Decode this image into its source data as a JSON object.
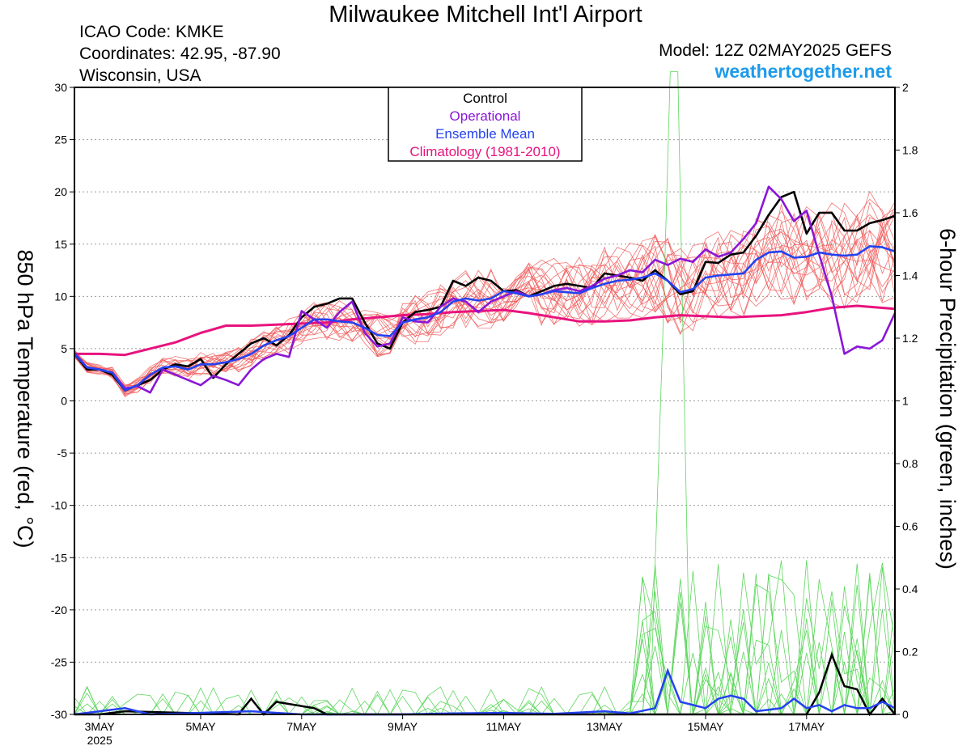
{
  "header": {
    "title": "Milwaukee Mitchell Int'l Airport",
    "icao": "ICAO Code: KMKE",
    "coords": "Coordinates: 42.95, -87.90",
    "region": "Wisconsin, USA",
    "model": "Model: 12Z 02MAY2025 GEFS",
    "site": "weathertogether.net"
  },
  "colors": {
    "control": "#000000",
    "operational": "#8a16d8",
    "mean": "#2442f0",
    "climatology": "#e8137e",
    "members_temp": "#f05a5a",
    "members_precip": "#5dd65d",
    "site": "#1e9bea"
  },
  "chart_data": {
    "type": "line",
    "ylabel": "850 hPa Temperature (red, °C)",
    "y2label": "6-hour Precipitation (green, inches)",
    "ylim": [
      -30,
      30
    ],
    "y2lim": [
      0,
      2
    ],
    "xlim": [
      2.5,
      18.75
    ],
    "yticks": [
      30,
      25,
      20,
      15,
      10,
      5,
      0,
      -5,
      -10,
      -15,
      -20,
      -25,
      -30
    ],
    "y2ticks": [
      "2",
      "1.8",
      "1.6",
      "1.4",
      "1.2",
      "1",
      "0.8",
      "0.6",
      "0.4",
      "0.2",
      "0"
    ],
    "xticks": [
      {
        "x": 3,
        "label": "3MAY",
        "sub": "2025"
      },
      {
        "x": 5,
        "label": "5MAY"
      },
      {
        "x": 7,
        "label": "7MAY"
      },
      {
        "x": 9,
        "label": "9MAY"
      },
      {
        "x": 11,
        "label": "11MAY"
      },
      {
        "x": 13,
        "label": "13MAY"
      },
      {
        "x": 15,
        "label": "15MAY"
      },
      {
        "x": 17,
        "label": "17MAY"
      }
    ],
    "grid": true,
    "legend": {
      "position": "top-center",
      "entries": [
        {
          "label": "Control",
          "color": "#000000"
        },
        {
          "label": "Operational",
          "color": "#8a16d8"
        },
        {
          "label": "Ensemble Mean",
          "color": "#2442f0"
        },
        {
          "label": "Climatology (1981-2010)",
          "color": "#e8137e"
        }
      ]
    },
    "series": [
      {
        "name": "Climatology (1981-2010)",
        "role": "climatology",
        "x": [
          2.5,
          3.0,
          3.5,
          4.0,
          4.5,
          5.0,
          5.5,
          6.0,
          6.5,
          7.0,
          7.5,
          8.0,
          8.5,
          9.0,
          9.5,
          10.0,
          10.5,
          11.0,
          11.5,
          12.0,
          12.5,
          13.0,
          13.5,
          14.0,
          14.5,
          15.0,
          15.5,
          16.0,
          16.5,
          17.0,
          17.5,
          18.0,
          18.75
        ],
        "y": [
          4.5,
          4.5,
          4.4,
          5.0,
          5.6,
          6.5,
          7.2,
          7.2,
          7.3,
          7.4,
          7.5,
          7.8,
          8.0,
          8.2,
          8.3,
          8.5,
          8.6,
          8.7,
          8.4,
          8.0,
          7.6,
          7.6,
          7.7,
          8.0,
          8.2,
          8.1,
          8.0,
          8.1,
          8.2,
          8.5,
          8.9,
          9.1,
          8.8
        ]
      },
      {
        "name": "Control",
        "role": "control",
        "x": [
          2.5,
          2.75,
          3.0,
          3.25,
          3.5,
          3.75,
          4.0,
          4.25,
          4.5,
          4.75,
          5.0,
          5.25,
          5.5,
          5.75,
          6.0,
          6.25,
          6.5,
          6.75,
          7.0,
          7.25,
          7.5,
          7.75,
          8.0,
          8.25,
          8.5,
          8.75,
          9.0,
          9.25,
          9.5,
          9.75,
          10.0,
          10.25,
          10.5,
          10.75,
          11.0,
          11.25,
          11.5,
          11.75,
          12.0,
          12.25,
          12.5,
          12.75,
          13.0,
          13.25,
          13.5,
          13.75,
          14.0,
          14.25,
          14.5,
          14.75,
          15.0,
          15.25,
          15.5,
          15.75,
          16.0,
          16.25,
          16.5,
          16.75,
          17.0,
          17.25,
          17.5,
          17.75,
          18.0,
          18.25,
          18.5,
          18.75
        ],
        "y": [
          4.5,
          3.0,
          3.0,
          2.5,
          1.0,
          1.5,
          2.0,
          3.0,
          3.5,
          3.3,
          4.0,
          2.2,
          3.5,
          4.5,
          5.5,
          6.0,
          5.3,
          6.3,
          8.0,
          9.0,
          9.3,
          9.8,
          9.8,
          7.5,
          5.5,
          5.0,
          7.5,
          8.5,
          8.7,
          9.0,
          11.5,
          11.0,
          11.8,
          11.5,
          10.5,
          10.6,
          10.0,
          10.5,
          11.0,
          11.2,
          11.0,
          10.8,
          12.2,
          12.0,
          11.8,
          11.5,
          12.5,
          11.5,
          10.2,
          10.5,
          13.3,
          13.2,
          14.0,
          14.2,
          15.8,
          17.8,
          19.5,
          20.0,
          16.0,
          18.0,
          18.0,
          16.3,
          16.3,
          17.0,
          17.3,
          17.7
        ]
      },
      {
        "name": "Operational",
        "role": "operational",
        "x": [
          2.5,
          2.75,
          3.0,
          3.25,
          3.5,
          3.75,
          4.0,
          4.25,
          4.5,
          4.75,
          5.0,
          5.25,
          5.5,
          5.75,
          6.0,
          6.25,
          6.5,
          6.75,
          7.0,
          7.25,
          7.5,
          7.75,
          8.0,
          8.25,
          8.5,
          8.75,
          9.0,
          9.25,
          9.5,
          9.75,
          10.0,
          10.25,
          10.5,
          10.75,
          11.0,
          11.25,
          11.5,
          11.75,
          12.0,
          12.25,
          12.5,
          12.75,
          13.0,
          13.25,
          13.5,
          13.75,
          14.0,
          14.25,
          14.5,
          14.75,
          15.0,
          15.25,
          15.5,
          15.75,
          16.0,
          16.25,
          16.5,
          16.75,
          17.0,
          17.25,
          17.5,
          17.75,
          18.0,
          18.25,
          18.5,
          18.75
        ],
        "y": [
          4.6,
          3.2,
          3.0,
          2.7,
          1.2,
          1.4,
          0.8,
          3.0,
          2.5,
          2.0,
          1.5,
          2.4,
          2.0,
          1.5,
          3.0,
          4.0,
          4.5,
          4.2,
          8.6,
          7.8,
          7.0,
          8.5,
          9.5,
          6.5,
          5.2,
          5.5,
          8.0,
          7.6,
          7.5,
          9.0,
          9.8,
          9.5,
          8.5,
          9.5,
          10.0,
          10.5,
          10.0,
          10.2,
          10.6,
          10.8,
          10.5,
          11.0,
          11.7,
          12.0,
          12.5,
          12.3,
          13.5,
          13.0,
          13.6,
          13.3,
          14.5,
          13.8,
          14.2,
          15.5,
          17.0,
          20.5,
          19.3,
          17.2,
          18.2,
          14.0,
          10.0,
          4.5,
          5.2,
          5.0,
          5.8,
          8.4
        ]
      },
      {
        "name": "Ensemble Mean",
        "role": "mean",
        "x": [
          2.5,
          2.75,
          3.0,
          3.25,
          3.5,
          3.75,
          4.0,
          4.25,
          4.5,
          4.75,
          5.0,
          5.25,
          5.5,
          5.75,
          6.0,
          6.25,
          6.5,
          6.75,
          7.0,
          7.25,
          7.5,
          7.75,
          8.0,
          8.25,
          8.5,
          8.75,
          9.0,
          9.25,
          9.5,
          9.75,
          10.0,
          10.25,
          10.5,
          10.75,
          11.0,
          11.25,
          11.5,
          11.75,
          12.0,
          12.25,
          12.5,
          12.75,
          13.0,
          13.25,
          13.5,
          13.75,
          14.0,
          14.25,
          14.5,
          14.75,
          15.0,
          15.25,
          15.5,
          15.75,
          16.0,
          16.25,
          16.5,
          16.75,
          17.0,
          17.25,
          17.5,
          17.75,
          18.0,
          18.25,
          18.5,
          18.75
        ],
        "y": [
          4.5,
          3.2,
          3.0,
          2.7,
          1.0,
          1.5,
          2.5,
          3.2,
          3.3,
          3.0,
          3.5,
          3.5,
          3.7,
          4.0,
          4.5,
          5.3,
          5.8,
          6.2,
          7.0,
          7.8,
          7.8,
          7.6,
          7.5,
          7.0,
          6.3,
          6.2,
          7.5,
          7.8,
          8.0,
          8.5,
          9.5,
          9.8,
          9.6,
          9.8,
          10.5,
          10.3,
          10.0,
          10.2,
          10.5,
          10.4,
          10.3,
          10.8,
          11.2,
          11.5,
          11.6,
          11.8,
          12.2,
          11.5,
          10.4,
          10.7,
          11.8,
          12.0,
          12.1,
          12.2,
          13.5,
          14.2,
          14.3,
          13.7,
          13.8,
          14.2,
          14.0,
          13.9,
          14.0,
          14.8,
          14.7,
          14.3
        ]
      }
    ],
    "precip_series": [
      {
        "name": "Control",
        "role": "control",
        "x": [
          2.5,
          3.0,
          3.5,
          5.75,
          6.0,
          6.25,
          6.5,
          7.25,
          7.5,
          12.5,
          13.0,
          13.75,
          14.0,
          17.0,
          17.25,
          17.5,
          17.75,
          18.0,
          18.25,
          18.5,
          18.75
        ],
        "y": [
          0.0,
          0.0,
          0.01,
          0.0,
          0.05,
          0.0,
          0.04,
          0.02,
          0.0,
          0.0,
          0.0,
          0.0,
          0.0,
          0.0,
          0.07,
          0.19,
          0.09,
          0.08,
          0.0,
          0.05,
          0.0
        ]
      },
      {
        "name": "Ensemble Mean",
        "role": "mean",
        "x": [
          2.5,
          3.0,
          3.5,
          4.0,
          6.0,
          7.0,
          9.0,
          10.0,
          11.0,
          12.0,
          13.0,
          13.5,
          14.0,
          14.25,
          14.5,
          14.75,
          15.0,
          15.25,
          15.5,
          15.75,
          16.0,
          16.25,
          16.5,
          16.75,
          17.0,
          17.25,
          17.5,
          17.75,
          18.0,
          18.25,
          18.5,
          18.75
        ],
        "y": [
          0.0,
          0.01,
          0.02,
          0.0,
          0.01,
          0.0,
          0.0,
          0.003,
          0.005,
          0.002,
          0.01,
          0.003,
          0.02,
          0.14,
          0.04,
          0.03,
          0.02,
          0.05,
          0.06,
          0.05,
          0.01,
          0.015,
          0.02,
          0.05,
          0.02,
          0.03,
          0.01,
          0.03,
          0.02,
          0.02,
          0.04,
          0.02
        ]
      }
    ]
  }
}
